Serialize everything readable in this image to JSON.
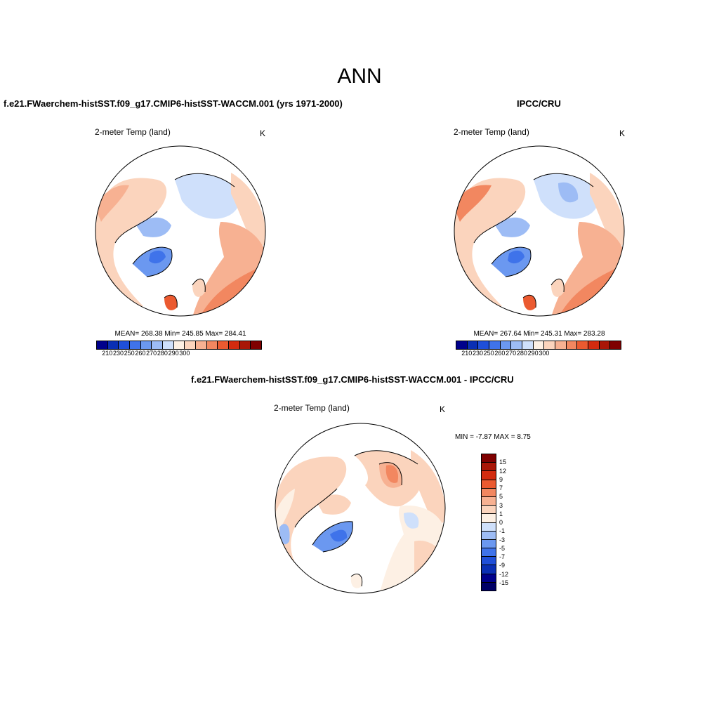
{
  "figure": {
    "title": "ANN",
    "bottom_title": "f.e21.FWaerchem-histSST.f09_g17.CMIP6-histSST-WACCM.001 - IPCC/CRU"
  },
  "panels": [
    {
      "title": "f.e21.FWaerchem-histSST.f09_g17.CMIP6-histSST-WACCM.001 (yrs 1971-2000)",
      "variable": "2-meter Temp (land)",
      "units": "K",
      "stats": "MEAN= 268.38   Min= 245.85   Max= 284.41"
    },
    {
      "title": "IPCC/CRU",
      "variable": "2-meter Temp (land)",
      "units": "K",
      "stats": "MEAN= 267.64   Min= 245.31   Max= 283.28"
    },
    {
      "title": "",
      "variable": "2-meter Temp (land)",
      "units": "K",
      "stats": "MIN =  -7.87 MAX =   8.75"
    }
  ],
  "colorbars": {
    "absolute": {
      "colors": [
        "#00008b",
        "#0a2fb4",
        "#1f4fd8",
        "#3f73ea",
        "#6b98f0",
        "#9dbcf5",
        "#cfe0fb",
        "#fdf0e4",
        "#fbd4bd",
        "#f7b192",
        "#f28760",
        "#eb5a30",
        "#d32b0f",
        "#a91607",
        "#7f0000"
      ],
      "labels": [
        "210",
        "230",
        "250",
        "260",
        "270",
        "280",
        "290",
        "300"
      ]
    },
    "difference": {
      "colors": [
        "#7f0000",
        "#a91607",
        "#d32b0f",
        "#eb5a30",
        "#f28760",
        "#f7b192",
        "#fbd4bd",
        "#fdf0e4",
        "#cfe0fb",
        "#9dbcf5",
        "#6b98f0",
        "#3f73ea",
        "#1f4fd8",
        "#0a2fb4",
        "#00008b",
        "#000066"
      ],
      "labels": [
        "15",
        "12",
        "9",
        "7",
        "5",
        "3",
        "1",
        "0",
        "-1",
        "-3",
        "-5",
        "-7",
        "-9",
        "-12",
        "-15"
      ]
    }
  }
}
